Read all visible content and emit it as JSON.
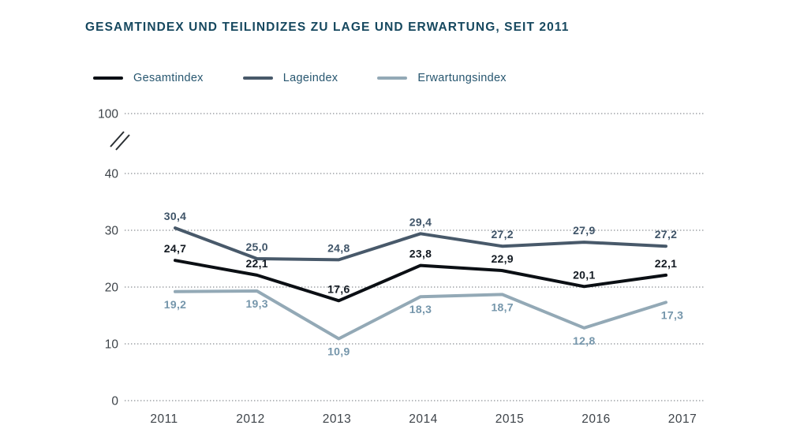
{
  "title": "GESAMTINDEX UND TEILINDIZES ZU LAGE UND ERWARTUNG, SEIT 2011",
  "colors": {
    "title_text": "#16485f",
    "legend_text": "#27566f",
    "axis_text": "#3d4349",
    "gridline": "#898e92",
    "axis_break": "#2a2f33",
    "background": "#ffffff"
  },
  "series_styles": {
    "Gesamtindex": {
      "line": "#0b0f14",
      "label": "#131a22"
    },
    "Lageindex": {
      "line": "#48596a",
      "label": "#3f5468"
    },
    "Erwartungsindex": {
      "line": "#93a9b6",
      "label": "#7596ab"
    }
  },
  "legend": [
    {
      "name": "Gesamtindex"
    },
    {
      "name": "Lageindex"
    },
    {
      "name": "Erwartungsindex"
    }
  ],
  "chart_data": {
    "type": "line",
    "x": [
      "2011",
      "2012",
      "2013",
      "2014",
      "2015",
      "2016",
      "2017"
    ],
    "series": [
      {
        "name": "Lageindex",
        "values": [
          30.4,
          25.0,
          24.8,
          29.4,
          27.2,
          27.9,
          27.2
        ],
        "labels": [
          "30,4",
          "25,0",
          "24,8",
          "29,4",
          "27,2",
          "27,9",
          "27,2"
        ],
        "label_position": "above"
      },
      {
        "name": "Erwartungsindex",
        "values": [
          19.2,
          19.3,
          10.9,
          18.3,
          18.7,
          12.8,
          17.3
        ],
        "labels": [
          "19,2",
          "19,3",
          "10,9",
          "18,3",
          "18,7",
          "12,8",
          "17,3"
        ],
        "label_position": "below"
      },
      {
        "name": "Gesamtindex",
        "values": [
          24.7,
          22.1,
          17.6,
          23.8,
          22.9,
          20.1,
          22.1
        ],
        "labels": [
          "24,7",
          "22,1",
          "17,6",
          "23,8",
          "22,9",
          "20,1",
          "22,1"
        ],
        "label_position": "above"
      }
    ],
    "y_axis_ticks": [
      "0",
      "10",
      "20",
      "30",
      "40",
      "100"
    ],
    "axis_break_between": [
      "40",
      "100"
    ],
    "ylim": [
      0,
      40
    ],
    "grid": "dotted-horizontal",
    "legend_position": "top-left",
    "decimal_separator": ","
  }
}
